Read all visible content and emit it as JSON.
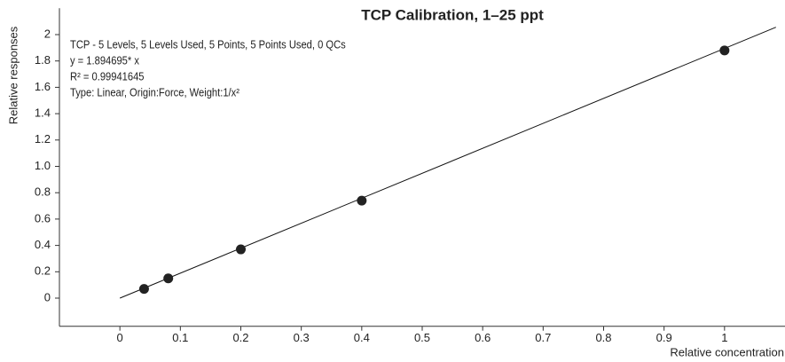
{
  "chart_data": {
    "type": "scatter",
    "title": "TCP Calibration, 1–25 ppt",
    "x_label": "Relative concentration",
    "y_label": "Relative responses",
    "annotations": [
      "TCP - 5 Levels, 5 Levels Used, 5 Points, 5 Points Used, 0 QCs",
      "y = 1.894695* x",
      "R² = 0.99941645",
      "Type: Linear, Origin:Force, Weight:1/x²"
    ],
    "x": [
      0.04,
      0.08,
      0.2,
      0.4,
      1
    ],
    "values": [
      0.07,
      0.15,
      0.37,
      0.74,
      1.88
    ],
    "color": "#222222",
    "fit_line": {
      "x": [
        0,
        1.085
      ],
      "values": [
        0,
        2.056
      ],
      "color": "#111111"
    },
    "xlim": [
      -0.1,
      1.1
    ],
    "ylim": [
      -0.2,
      2.2
    ],
    "xticks": [
      0,
      0.1,
      0.2,
      0.3,
      0.4,
      0.5,
      0.6,
      0.7,
      0.8,
      0.9,
      1
    ],
    "yticks": [
      0,
      0.2,
      0.4,
      0.6,
      0.8,
      {
        "value": 1,
        "label": "1.0"
      },
      1.2,
      1.4,
      1.6,
      1.8,
      2
    ]
  }
}
